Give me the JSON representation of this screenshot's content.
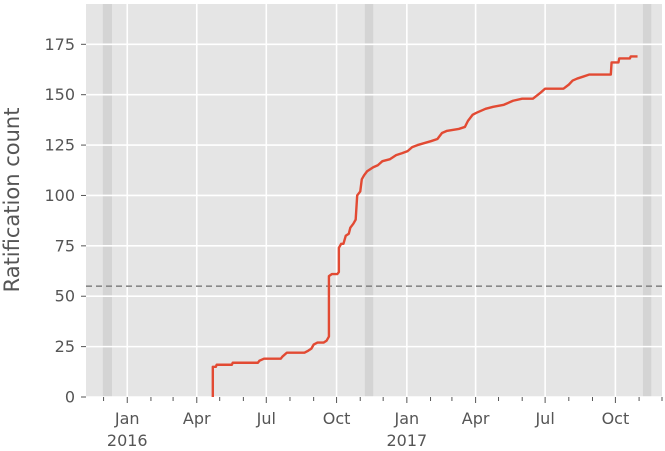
{
  "chart_data": {
    "type": "line",
    "title": "",
    "xlabel": "",
    "ylabel": "Ratification count",
    "grid": true,
    "legend": "none",
    "colors": {
      "background": "#e5e5e5",
      "grid": "#ffffff",
      "series": "#e24a33",
      "band": "#d4d4d4",
      "threshold": "#888888",
      "text": "#555555"
    },
    "xlim": [
      "2015-11-08",
      "2017-12-01"
    ],
    "ylim": [
      0,
      195
    ],
    "yticks": [
      0,
      25,
      50,
      75,
      100,
      125,
      150,
      175
    ],
    "xticks": [
      {
        "date": "2016-01-01",
        "label": "Jan",
        "sublabel": "2016"
      },
      {
        "date": "2016-04-01",
        "label": "Apr",
        "sublabel": ""
      },
      {
        "date": "2016-07-01",
        "label": "Jul",
        "sublabel": ""
      },
      {
        "date": "2016-10-01",
        "label": "Oct",
        "sublabel": ""
      },
      {
        "date": "2017-01-01",
        "label": "Jan",
        "sublabel": "2017"
      },
      {
        "date": "2017-04-01",
        "label": "Apr",
        "sublabel": ""
      },
      {
        "date": "2017-07-01",
        "label": "Jul",
        "sublabel": ""
      },
      {
        "date": "2017-10-01",
        "label": "Oct",
        "sublabel": ""
      }
    ],
    "minor_xticks": [
      "2015-11-01",
      "2015-12-01",
      "2016-02-01",
      "2016-03-01",
      "2016-05-01",
      "2016-06-01",
      "2016-08-01",
      "2016-09-01",
      "2016-11-01",
      "2016-12-01",
      "2017-02-01",
      "2017-03-01",
      "2017-05-01",
      "2017-06-01",
      "2017-08-01",
      "2017-09-01",
      "2017-11-01",
      "2017-12-01"
    ],
    "threshold": 55,
    "bands": [
      {
        "start": "2015-11-30",
        "end": "2015-12-12"
      },
      {
        "start": "2016-11-07",
        "end": "2016-11-18"
      },
      {
        "start": "2017-11-06",
        "end": "2017-11-17"
      }
    ],
    "series": [
      {
        "points": [
          [
            "2016-04-22",
            0
          ],
          [
            "2016-04-22",
            15
          ],
          [
            "2016-04-26",
            15
          ],
          [
            "2016-04-27",
            16
          ],
          [
            "2016-05-17",
            16
          ],
          [
            "2016-05-18",
            17
          ],
          [
            "2016-06-20",
            17
          ],
          [
            "2016-06-22",
            18
          ],
          [
            "2016-06-28",
            19
          ],
          [
            "2016-07-20",
            19
          ],
          [
            "2016-07-22",
            20
          ],
          [
            "2016-07-28",
            22
          ],
          [
            "2016-08-20",
            22
          ],
          [
            "2016-08-25",
            23
          ],
          [
            "2016-08-29",
            24
          ],
          [
            "2016-09-01",
            26
          ],
          [
            "2016-09-06",
            27
          ],
          [
            "2016-09-14",
            27
          ],
          [
            "2016-09-18",
            28
          ],
          [
            "2016-09-21",
            30
          ],
          [
            "2016-09-21",
            60
          ],
          [
            "2016-09-25",
            61
          ],
          [
            "2016-10-02",
            61
          ],
          [
            "2016-10-04",
            62
          ],
          [
            "2016-10-04",
            74
          ],
          [
            "2016-10-07",
            76
          ],
          [
            "2016-10-10",
            76
          ],
          [
            "2016-10-13",
            80
          ],
          [
            "2016-10-17",
            81
          ],
          [
            "2016-10-19",
            84
          ],
          [
            "2016-10-23",
            86
          ],
          [
            "2016-10-26",
            88
          ],
          [
            "2016-10-28",
            100
          ],
          [
            "2016-11-01",
            102
          ],
          [
            "2016-11-03",
            108
          ],
          [
            "2016-11-06",
            110
          ],
          [
            "2016-11-10",
            112
          ],
          [
            "2016-11-14",
            113
          ],
          [
            "2016-11-18",
            114
          ],
          [
            "2016-11-24",
            115
          ],
          [
            "2016-11-30",
            117
          ],
          [
            "2016-12-10",
            118
          ],
          [
            "2016-12-18",
            120
          ],
          [
            "2016-12-26",
            121
          ],
          [
            "2017-01-02",
            122
          ],
          [
            "2017-01-08",
            124
          ],
          [
            "2017-01-15",
            125
          ],
          [
            "2017-01-24",
            126
          ],
          [
            "2017-02-02",
            127
          ],
          [
            "2017-02-10",
            128
          ],
          [
            "2017-02-16",
            131
          ],
          [
            "2017-02-22",
            132
          ],
          [
            "2017-03-10",
            133
          ],
          [
            "2017-03-18",
            134
          ],
          [
            "2017-03-22",
            137
          ],
          [
            "2017-03-28",
            140
          ],
          [
            "2017-04-02",
            141
          ],
          [
            "2017-04-14",
            143
          ],
          [
            "2017-04-24",
            144
          ],
          [
            "2017-05-08",
            145
          ],
          [
            "2017-05-20",
            147
          ],
          [
            "2017-06-01",
            148
          ],
          [
            "2017-06-15",
            148
          ],
          [
            "2017-06-25",
            151
          ],
          [
            "2017-07-01",
            153
          ],
          [
            "2017-07-25",
            153
          ],
          [
            "2017-08-01",
            155
          ],
          [
            "2017-08-06",
            157
          ],
          [
            "2017-08-12",
            158
          ],
          [
            "2017-08-20",
            159
          ],
          [
            "2017-08-28",
            160
          ],
          [
            "2017-09-25",
            160
          ],
          [
            "2017-09-26",
            166
          ],
          [
            "2017-10-05",
            166
          ],
          [
            "2017-10-06",
            168
          ],
          [
            "2017-10-20",
            168
          ],
          [
            "2017-10-21",
            169
          ],
          [
            "2017-10-30",
            169
          ]
        ]
      }
    ]
  }
}
